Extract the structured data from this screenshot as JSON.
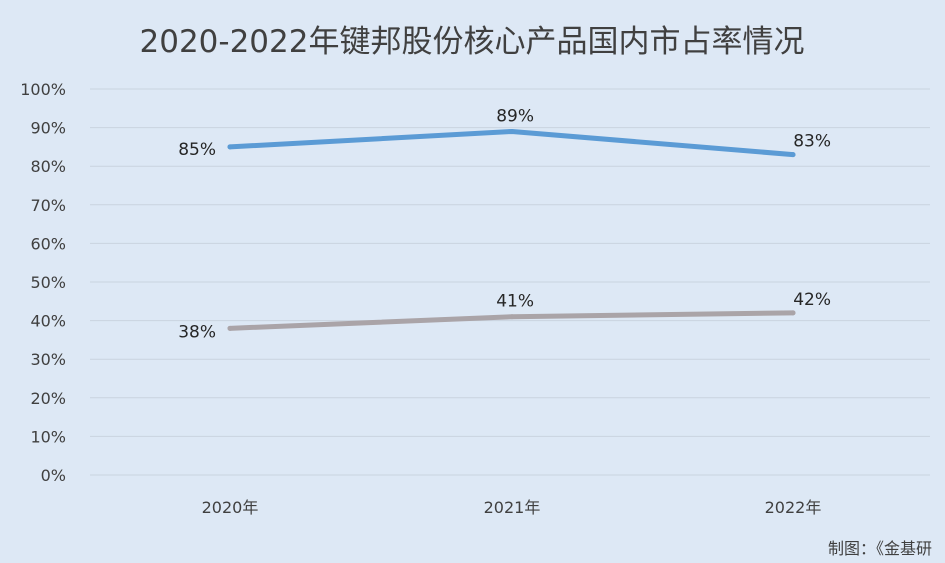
{
  "chart_data": {
    "type": "line",
    "title": "2020-2022年键邦股份核心产品国内市占率情况",
    "xlabel": "",
    "ylabel": "",
    "categories": [
      "2020年",
      "2021年",
      "2022年"
    ],
    "ylim": [
      0,
      100
    ],
    "yticks": [
      "0%",
      "10%",
      "20%",
      "30%",
      "40%",
      "50%",
      "60%",
      "70%",
      "80%",
      "90%",
      "100%"
    ],
    "grid": true,
    "legend": "none",
    "series": [
      {
        "values": [
          85,
          89,
          83
        ],
        "labels": [
          "85%",
          "89%",
          "83%"
        ],
        "color": "#5b9bd5"
      },
      {
        "values": [
          38,
          41,
          42
        ],
        "labels": [
          "38%",
          "41%",
          "42%"
        ],
        "color": "#aaa4a8"
      }
    ],
    "source": "制图：《金基研"
  }
}
